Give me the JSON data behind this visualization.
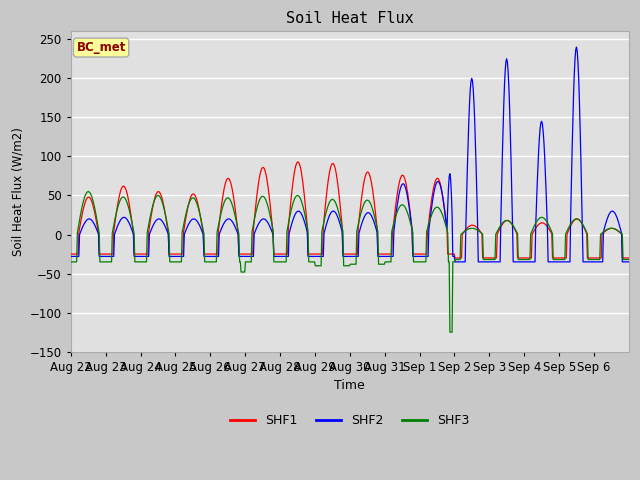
{
  "title": "Soil Heat Flux",
  "xlabel": "Time",
  "ylabel": "Soil Heat Flux (W/m2)",
  "ylim": [
    -150,
    260
  ],
  "yticks": [
    -150,
    -100,
    -50,
    0,
    50,
    100,
    150,
    200,
    250
  ],
  "legend_label": "BC_met",
  "series_labels": [
    "SHF1",
    "SHF2",
    "SHF3"
  ],
  "series_colors": [
    "red",
    "blue",
    "green"
  ],
  "fig_facecolor": "#c8c8c8",
  "ax_facecolor": "#e0e0e0",
  "grid_color": "#ffffff",
  "n_days": 16,
  "tick_labels": [
    "Aug 22",
    "Aug 23",
    "Aug 24",
    "Aug 25",
    "Aug 26",
    "Aug 27",
    "Aug 28",
    "Aug 29",
    "Aug 30",
    "Aug 31",
    "Sep 1",
    "Sep 2",
    "Sep 3",
    "Sep 4",
    "Sep 5",
    "Sep 6"
  ]
}
